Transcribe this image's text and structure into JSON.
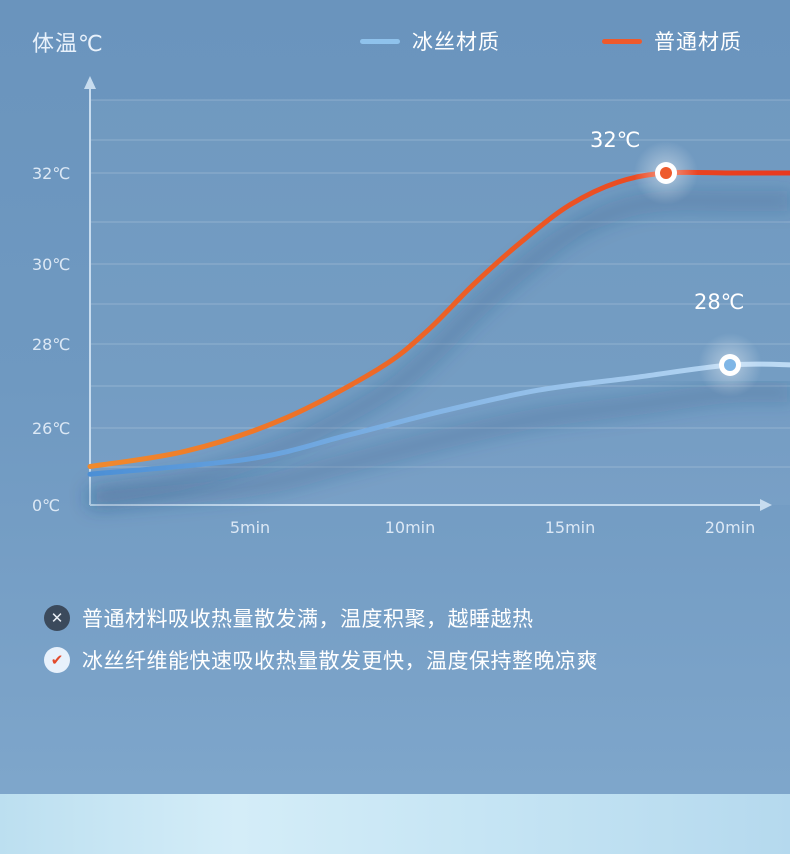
{
  "header": {
    "y_title": "体温℃"
  },
  "legend": [
    {
      "label": "冰丝材质",
      "color": "#8fc2ec"
    },
    {
      "label": "普通材质",
      "color": "#ee5a2c"
    }
  ],
  "chart_data": {
    "type": "line",
    "title": "",
    "xlabel": "",
    "ylabel": "体温℃",
    "x_ticks": [
      "5min",
      "10min",
      "15min",
      "20min"
    ],
    "y_ticks": [
      "0℃",
      "26℃",
      "28℃",
      "30℃",
      "32℃"
    ],
    "grid": true,
    "legend_position": "top-right",
    "series": [
      {
        "name": "冰丝材质",
        "color": "#7fb6e6",
        "x": [
          0,
          5,
          8,
          11,
          14,
          17,
          20,
          22
        ],
        "y": [
          25.4,
          25.6,
          25.9,
          26.4,
          26.9,
          27.2,
          27.5,
          27.5
        ],
        "annotation": {
          "x": 20,
          "y": 27.5,
          "label": "28℃"
        }
      },
      {
        "name": "普通材质",
        "color": "#ee5a2c",
        "x": [
          0,
          3,
          6,
          9,
          10.5,
          12,
          13.5,
          15,
          16.5,
          18,
          20,
          22
        ],
        "y": [
          25.5,
          25.7,
          26.2,
          27.4,
          28.3,
          29.5,
          30.5,
          31.3,
          31.8,
          32.0,
          32.0,
          32.0
        ],
        "annotation": {
          "x": 18,
          "y": 32.0,
          "label": "32℃"
        }
      }
    ]
  },
  "notes": [
    {
      "type": "no",
      "text": "普通材料吸收热量散发满，温度积聚，越睡越热"
    },
    {
      "type": "yes",
      "text": "冰丝纤维能快速吸收热量散发更快，温度保持整晚凉爽"
    }
  ]
}
